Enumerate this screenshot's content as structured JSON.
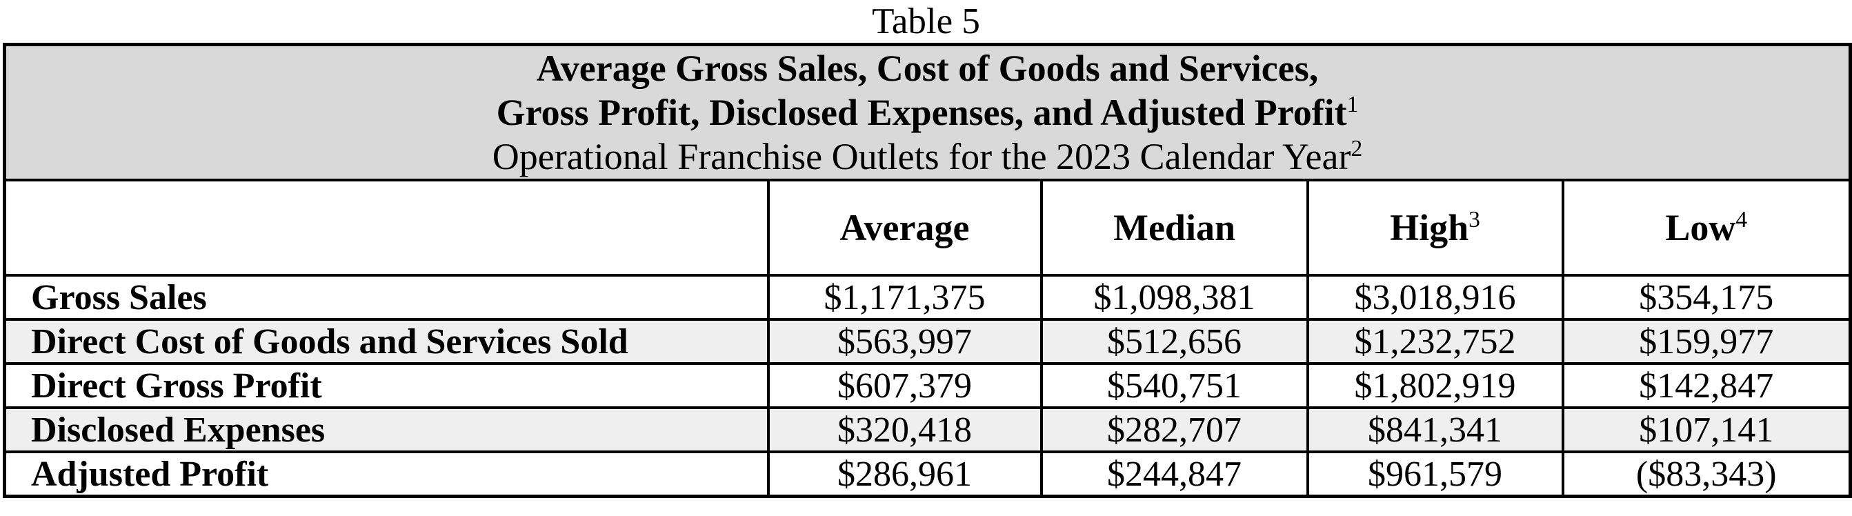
{
  "document": {
    "table_number": "Table 5",
    "caption": {
      "line1": "Average Gross Sales, Cost of Goods and Services,",
      "line2": "Gross Profit, Disclosed Expenses, and Adjusted Profit",
      "line2_footnote": "1",
      "line3": "Operational Franchise Outlets for the 2023 Calendar Year",
      "line3_footnote": "2"
    },
    "columns": [
      {
        "label": "",
        "footnote": ""
      },
      {
        "label": "Average",
        "footnote": ""
      },
      {
        "label": "Median",
        "footnote": ""
      },
      {
        "label": "High",
        "footnote": "3"
      },
      {
        "label": "Low",
        "footnote": "4"
      }
    ],
    "rows": [
      {
        "label": "Gross Sales",
        "shaded": false,
        "values": [
          "$1,171,375",
          "$1,098,381",
          "$3,018,916",
          "$354,175"
        ]
      },
      {
        "label": "Direct Cost of Goods and Services Sold",
        "shaded": true,
        "values": [
          "$563,997",
          "$512,656",
          "$1,232,752",
          "$159,977"
        ]
      },
      {
        "label": "Direct Gross Profit",
        "shaded": false,
        "values": [
          "$607,379",
          "$540,751",
          "$1,802,919",
          "$142,847"
        ]
      },
      {
        "label": "Disclosed Expenses",
        "shaded": true,
        "values": [
          "$320,418",
          "$282,707",
          "$841,341",
          "$107,141"
        ]
      },
      {
        "label": "Adjusted Profit",
        "shaded": false,
        "values": [
          "$286,961",
          "$244,847",
          "$961,579",
          "($83,343)"
        ]
      }
    ],
    "colors": {
      "caption_background": "#d9d9d9",
      "shaded_row_background": "#efefef",
      "border": "#000000",
      "text": "#000000"
    }
  }
}
